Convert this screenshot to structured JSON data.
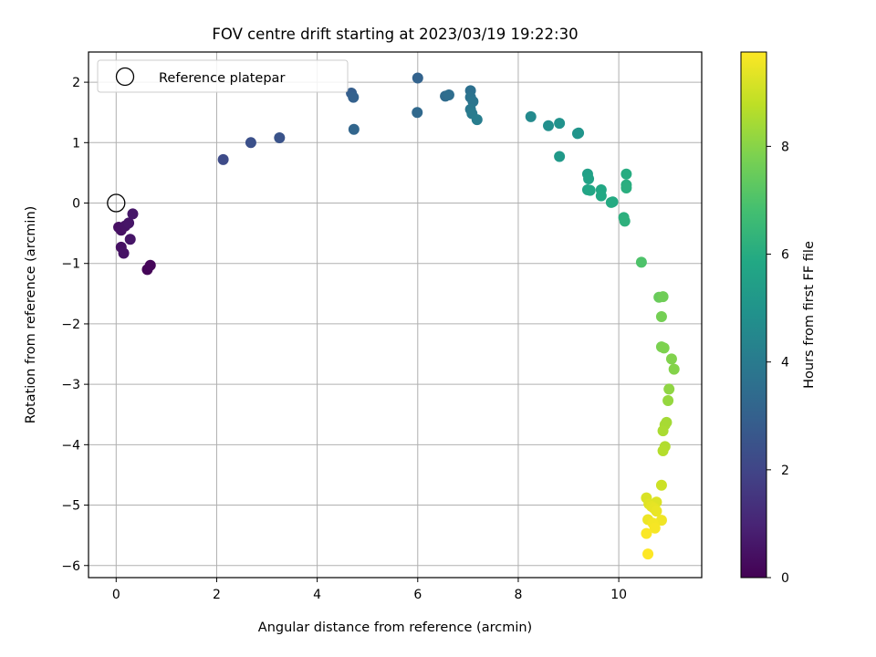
{
  "chart_data": {
    "type": "scatter",
    "title": "FOV centre drift starting at 2023/03/19 19:22:30",
    "xlabel": "Angular distance from reference (arcmin)",
    "ylabel": "Rotation from reference (arcmin)",
    "xlim": [
      -0.55,
      11.65
    ],
    "ylim": [
      -6.2,
      2.5
    ],
    "xticks": [
      0,
      2,
      4,
      6,
      8,
      10
    ],
    "yticks": [
      -6,
      -5,
      -4,
      -3,
      -2,
      -1,
      0,
      1,
      2
    ],
    "grid": true,
    "legend": {
      "placement": "top-left",
      "entries": [
        "Reference platepar"
      ]
    },
    "colorbar": {
      "label": "Hours from first FF file",
      "range": [
        0,
        9.75
      ],
      "ticks": [
        0,
        2,
        4,
        6,
        8
      ],
      "colormap": "viridis"
    },
    "reference_point": {
      "x": 0,
      "y": 0
    },
    "points": [
      {
        "x": 0.05,
        "y": -0.4,
        "h": 0.4
      },
      {
        "x": 0.1,
        "y": -0.45,
        "h": 0.45
      },
      {
        "x": 0.18,
        "y": -0.38,
        "h": 0.5
      },
      {
        "x": 0.25,
        "y": -0.33,
        "h": 0.55
      },
      {
        "x": 0.33,
        "y": -0.18,
        "h": 0.6
      },
      {
        "x": 0.1,
        "y": -0.73,
        "h": 0.45
      },
      {
        "x": 0.15,
        "y": -0.83,
        "h": 0.5
      },
      {
        "x": 0.28,
        "y": -0.6,
        "h": 0.55
      },
      {
        "x": 0.62,
        "y": -1.1,
        "h": 0.1
      },
      {
        "x": 0.68,
        "y": -1.03,
        "h": 0.15
      },
      {
        "x": 2.13,
        "y": 0.72,
        "h": 2.2
      },
      {
        "x": 2.68,
        "y": 1.0,
        "h": 2.4
      },
      {
        "x": 3.25,
        "y": 1.08,
        "h": 2.5
      },
      {
        "x": 4.68,
        "y": 1.82,
        "h": 2.9
      },
      {
        "x": 4.72,
        "y": 1.75,
        "h": 3.0
      },
      {
        "x": 4.73,
        "y": 1.22,
        "h": 3.2
      },
      {
        "x": 6.0,
        "y": 2.07,
        "h": 3.1
      },
      {
        "x": 5.99,
        "y": 1.5,
        "h": 3.3
      },
      {
        "x": 6.55,
        "y": 1.77,
        "h": 3.4
      },
      {
        "x": 6.62,
        "y": 1.79,
        "h": 3.5
      },
      {
        "x": 7.05,
        "y": 1.86,
        "h": 3.6
      },
      {
        "x": 7.05,
        "y": 1.75,
        "h": 3.7
      },
      {
        "x": 7.1,
        "y": 1.68,
        "h": 3.8
      },
      {
        "x": 7.05,
        "y": 1.55,
        "h": 3.9
      },
      {
        "x": 7.08,
        "y": 1.48,
        "h": 4.0
      },
      {
        "x": 7.18,
        "y": 1.38,
        "h": 4.1
      },
      {
        "x": 8.25,
        "y": 1.43,
        "h": 4.6
      },
      {
        "x": 8.6,
        "y": 1.28,
        "h": 4.8
      },
      {
        "x": 8.82,
        "y": 1.32,
        "h": 4.9
      },
      {
        "x": 9.2,
        "y": 1.16,
        "h": 5.0
      },
      {
        "x": 9.18,
        "y": 1.15,
        "h": 5.05
      },
      {
        "x": 8.82,
        "y": 0.77,
        "h": 5.2
      },
      {
        "x": 9.38,
        "y": 0.48,
        "h": 5.5
      },
      {
        "x": 9.4,
        "y": 0.4,
        "h": 5.6
      },
      {
        "x": 9.38,
        "y": 0.22,
        "h": 5.7
      },
      {
        "x": 9.43,
        "y": 0.21,
        "h": 5.75
      },
      {
        "x": 9.65,
        "y": 0.22,
        "h": 5.8
      },
      {
        "x": 9.65,
        "y": 0.12,
        "h": 5.85
      },
      {
        "x": 9.88,
        "y": 0.02,
        "h": 5.9
      },
      {
        "x": 9.85,
        "y": 0.01,
        "h": 5.95
      },
      {
        "x": 10.15,
        "y": 0.48,
        "h": 6.0
      },
      {
        "x": 10.15,
        "y": 0.3,
        "h": 6.05
      },
      {
        "x": 10.15,
        "y": 0.25,
        "h": 6.1
      },
      {
        "x": 10.1,
        "y": -0.24,
        "h": 6.15
      },
      {
        "x": 10.12,
        "y": -0.3,
        "h": 6.2
      },
      {
        "x": 10.45,
        "y": -0.98,
        "h": 7.0
      },
      {
        "x": 10.8,
        "y": -1.56,
        "h": 7.5
      },
      {
        "x": 10.88,
        "y": -1.55,
        "h": 7.6
      },
      {
        "x": 10.85,
        "y": -1.88,
        "h": 7.7
      },
      {
        "x": 10.85,
        "y": -2.38,
        "h": 7.8
      },
      {
        "x": 10.9,
        "y": -2.4,
        "h": 7.85
      },
      {
        "x": 11.05,
        "y": -2.58,
        "h": 7.9
      },
      {
        "x": 11.1,
        "y": -2.75,
        "h": 7.95
      },
      {
        "x": 11.0,
        "y": -3.08,
        "h": 8.1
      },
      {
        "x": 10.98,
        "y": -3.27,
        "h": 8.2
      },
      {
        "x": 10.95,
        "y": -3.63,
        "h": 8.4
      },
      {
        "x": 10.92,
        "y": -3.67,
        "h": 8.45
      },
      {
        "x": 10.88,
        "y": -3.77,
        "h": 8.5
      },
      {
        "x": 10.92,
        "y": -4.03,
        "h": 8.6
      },
      {
        "x": 10.88,
        "y": -4.1,
        "h": 8.65
      },
      {
        "x": 10.85,
        "y": -4.67,
        "h": 9.0
      },
      {
        "x": 10.55,
        "y": -4.88,
        "h": 9.2
      },
      {
        "x": 10.75,
        "y": -4.95,
        "h": 9.25
      },
      {
        "x": 10.6,
        "y": -4.98,
        "h": 9.3
      },
      {
        "x": 10.65,
        "y": -5.02,
        "h": 9.35
      },
      {
        "x": 10.7,
        "y": -5.05,
        "h": 9.4
      },
      {
        "x": 10.75,
        "y": -5.1,
        "h": 9.45
      },
      {
        "x": 10.58,
        "y": -5.24,
        "h": 9.5
      },
      {
        "x": 10.85,
        "y": -5.25,
        "h": 9.55
      },
      {
        "x": 10.68,
        "y": -5.3,
        "h": 9.6
      },
      {
        "x": 10.72,
        "y": -5.38,
        "h": 9.65
      },
      {
        "x": 10.55,
        "y": -5.47,
        "h": 9.7
      },
      {
        "x": 10.58,
        "y": -5.81,
        "h": 9.75
      }
    ]
  }
}
